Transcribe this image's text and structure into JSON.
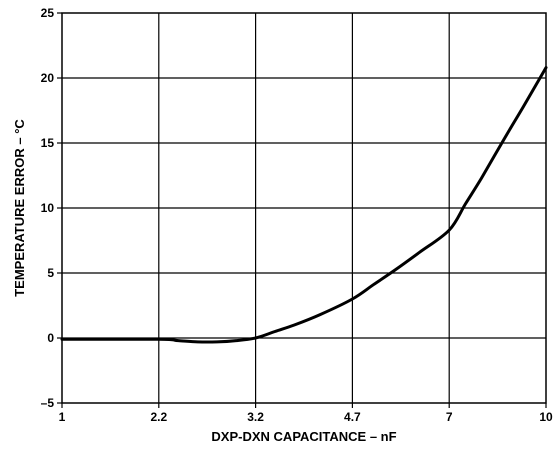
{
  "chart_data": {
    "type": "line",
    "title": "",
    "xlabel": "DXP-DXN CAPACITANCE – nF",
    "ylabel": "TEMPERATURE ERROR – °C",
    "x_ticks": [
      "1",
      "2.2",
      "3.2",
      "4.7",
      "7",
      "10"
    ],
    "y_ticks": [
      "-5",
      "0",
      "5",
      "10",
      "15",
      "20",
      "25"
    ],
    "ylim": [
      -5,
      25
    ],
    "grid": true,
    "series": [
      {
        "name": "",
        "points": [
          {
            "x": "1",
            "y": -0.1
          },
          {
            "x": "2.2",
            "y": -0.1
          },
          {
            "x": "2.4",
            "y": -0.2
          },
          {
            "x": "2.6",
            "y": -0.3
          },
          {
            "x": "2.8",
            "y": -0.3
          },
          {
            "x": "3.0",
            "y": -0.2
          },
          {
            "x": "3.2",
            "y": 0.0
          },
          {
            "x": "3.5",
            "y": 0.5
          },
          {
            "x": "3.8",
            "y": 1.0
          },
          {
            "x": "4.2",
            "y": 1.8
          },
          {
            "x": "4.7",
            "y": 3.0
          },
          {
            "x": "5.2",
            "y": 4.1
          },
          {
            "x": "5.7",
            "y": 5.2
          },
          {
            "x": "6.3",
            "y": 6.6
          },
          {
            "x": "7",
            "y": 8.3
          },
          {
            "x": "7.5",
            "y": 10.3
          },
          {
            "x": "8",
            "y": 12.3
          },
          {
            "x": "8.7",
            "y": 15.3
          },
          {
            "x": "9.3",
            "y": 17.8
          },
          {
            "x": "10",
            "y": 20.8
          }
        ]
      }
    ]
  }
}
